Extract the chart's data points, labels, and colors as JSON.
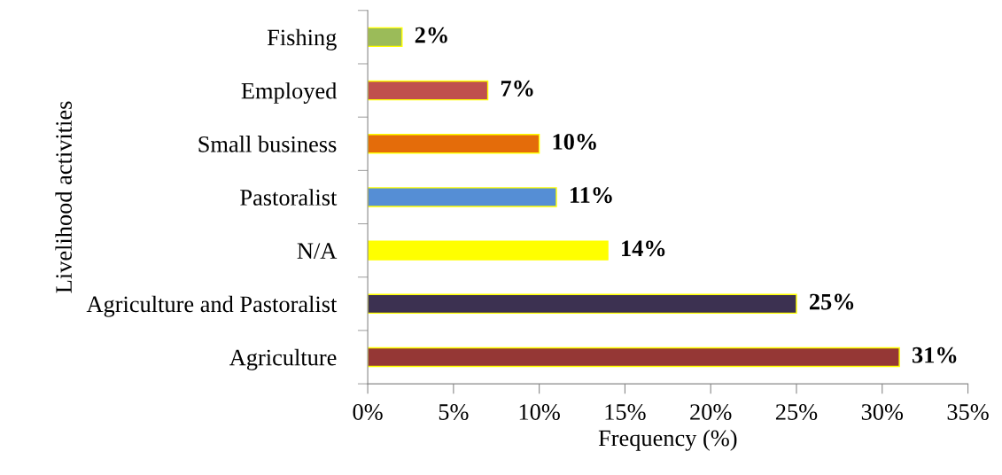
{
  "chart_data": {
    "type": "bar",
    "orientation": "horizontal",
    "xlabel": "Frequency (%)",
    "ylabel": "Livelihood activities",
    "categories": [
      "Fishing",
      "Employed",
      "Small business",
      "Pastoralist",
      "N/A",
      "Agriculture and Pastoralist",
      "Agriculture"
    ],
    "values": [
      2,
      7,
      10,
      11,
      14,
      25,
      31
    ],
    "colors": [
      "#9bbb59",
      "#c0504d",
      "#e46c0a",
      "#558ed5",
      "#ffff00",
      "#3c3151",
      "#953735"
    ],
    "value_labels": [
      "2%",
      "7%",
      "10%",
      "11%",
      "14%",
      "25%",
      "31%"
    ],
    "xlim": [
      0,
      35
    ],
    "xticks": [
      {
        "value": 0,
        "label": "0%"
      },
      {
        "value": 5,
        "label": "5%"
      },
      {
        "value": 10,
        "label": "10%"
      },
      {
        "value": 15,
        "label": "15%"
      },
      {
        "value": 20,
        "label": "20%"
      },
      {
        "value": 25,
        "label": "25%"
      },
      {
        "value": 30,
        "label": "30%"
      },
      {
        "value": 35,
        "label": "35%"
      }
    ],
    "grid": false,
    "legend": false
  }
}
